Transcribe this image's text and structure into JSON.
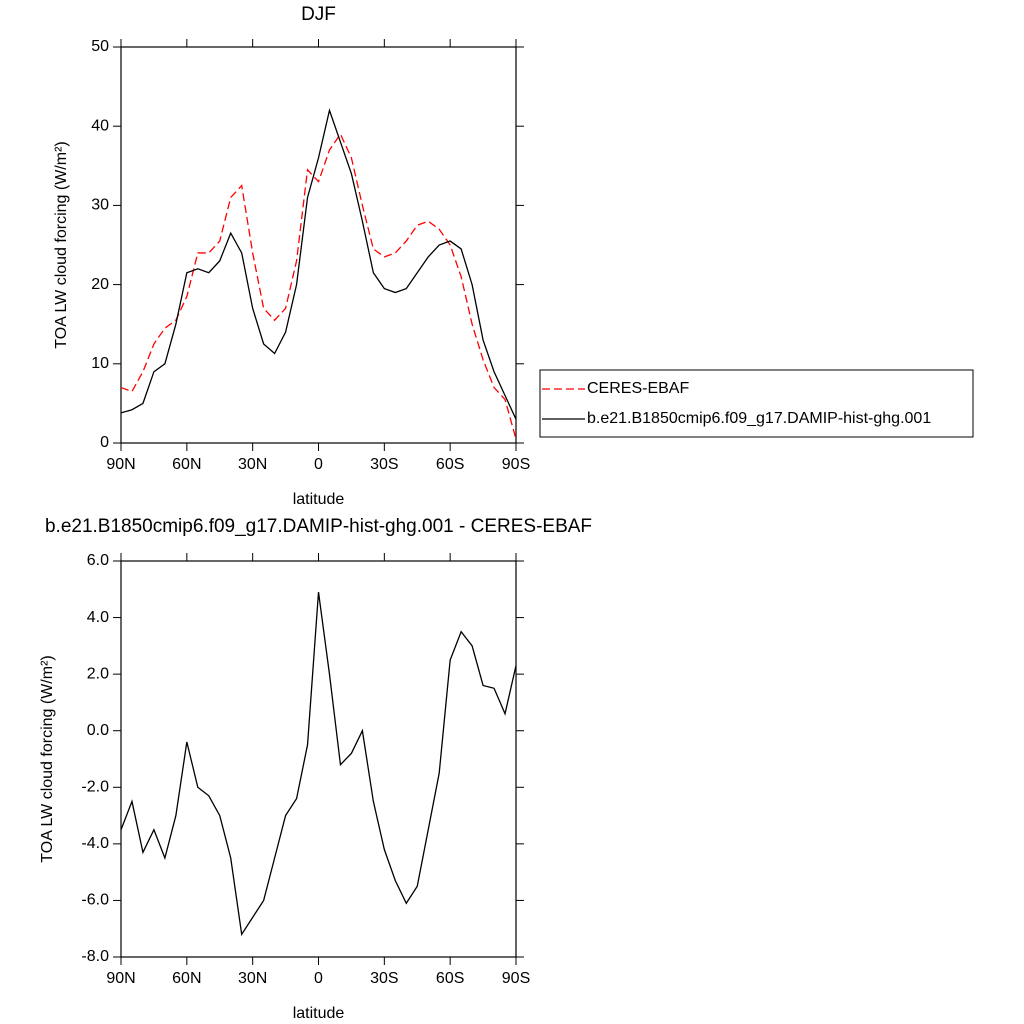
{
  "chart_data": [
    {
      "type": "line",
      "title": "DJF",
      "xlabel": "latitude",
      "ylabel": "TOA LW cloud forcing (W/m²)",
      "x": [
        90,
        85,
        80,
        75,
        70,
        65,
        60,
        55,
        50,
        45,
        40,
        35,
        30,
        25,
        20,
        15,
        10,
        5,
        0,
        -5,
        -10,
        -15,
        -20,
        -25,
        -30,
        -35,
        -40,
        -45,
        -50,
        -55,
        -60,
        -65,
        -70,
        -75,
        -80,
        -85,
        -90
      ],
      "series": [
        {
          "name": "CERES-EBAF",
          "color": "#ff0000",
          "linestyle": "dashed",
          "values": [
            7,
            6.5,
            9,
            12.5,
            14.5,
            15.5,
            18.5,
            24,
            24,
            25.5,
            31,
            32.5,
            24,
            17,
            15.5,
            17,
            23,
            34.5,
            33,
            37,
            39,
            36,
            30,
            24.5,
            23.5,
            24,
            25.5,
            27.5,
            28,
            27,
            25,
            21,
            15,
            10.5,
            7,
            5.5,
            0.5
          ]
        },
        {
          "name": "b.e21.B1850cmip6.f09_g17.DAMIP-hist-ghg.001",
          "color": "#000000",
          "linestyle": "solid",
          "values": [
            3.8,
            4.2,
            5,
            9,
            10,
            15,
            21.5,
            22,
            21.5,
            23,
            26.5,
            24,
            17,
            12.5,
            11.3,
            14,
            20,
            31,
            36,
            42,
            38,
            34,
            28,
            21.5,
            19.5,
            19,
            19.5,
            21.5,
            23.5,
            25,
            25.5,
            24.5,
            20,
            13,
            9,
            6,
            3
          ]
        }
      ],
      "xlim": [
        90,
        -90
      ],
      "xticks": [
        {
          "value": 90,
          "label": "90N"
        },
        {
          "value": 60,
          "label": "60N"
        },
        {
          "value": 30,
          "label": "30N"
        },
        0,
        {
          "value": -30,
          "label": "30S"
        },
        {
          "value": -60,
          "label": "60S"
        },
        {
          "value": -90,
          "label": "90S"
        }
      ],
      "ylim": [
        0,
        50
      ],
      "yticks": [
        0,
        10,
        20,
        30,
        40,
        50
      ],
      "legend": "right"
    },
    {
      "type": "line",
      "title": "b.e21.B1850cmip6.f09_g17.DAMIP-hist-ghg.001 - CERES-EBAF",
      "xlabel": "latitude",
      "ylabel": "TOA LW cloud forcing (W/m²)",
      "x": [
        90,
        85,
        80,
        75,
        70,
        65,
        60,
        55,
        50,
        45,
        40,
        35,
        30,
        25,
        20,
        15,
        10,
        5,
        0,
        -5,
        -10,
        -15,
        -20,
        -25,
        -30,
        -35,
        -40,
        -45,
        -50,
        -55,
        -60,
        -65,
        -70,
        -75,
        -80,
        -85,
        -90
      ],
      "values": [
        -3.5,
        -2.5,
        -4.3,
        -3.5,
        -4.5,
        -3.0,
        -0.4,
        -2.0,
        -2.3,
        -3.0,
        -4.5,
        -7.2,
        -6.6,
        -6.0,
        -4.5,
        -3.0,
        -2.4,
        -0.5,
        4.9,
        2.0,
        -1.2,
        -0.8,
        0.0,
        -2.5,
        -4.2,
        -5.3,
        -6.1,
        -5.5,
        -3.5,
        -1.5,
        2.5,
        3.5,
        3.0,
        1.6,
        1.5,
        0.6,
        2.3
      ],
      "color": "#000000",
      "xlim": [
        90,
        -90
      ],
      "xticks": [
        {
          "value": 90,
          "label": "90N"
        },
        {
          "value": 60,
          "label": "60N"
        },
        {
          "value": 30,
          "label": "30N"
        },
        0,
        {
          "value": -30,
          "label": "30S"
        },
        {
          "value": -60,
          "label": "60S"
        },
        {
          "value": -90,
          "label": "90S"
        }
      ],
      "ylim": [
        -8,
        6
      ],
      "yticks": [
        {
          "value": -8,
          "label": "-8.0"
        },
        {
          "value": -6,
          "label": "-6.0"
        },
        {
          "value": -4,
          "label": "-4.0"
        },
        {
          "value": -2,
          "label": "-2.0"
        },
        {
          "value": 0,
          "label": "0.0"
        },
        {
          "value": 2,
          "label": "2.0"
        },
        {
          "value": 4,
          "label": "4.0"
        },
        {
          "value": 6,
          "label": "6.0"
        }
      ]
    }
  ]
}
